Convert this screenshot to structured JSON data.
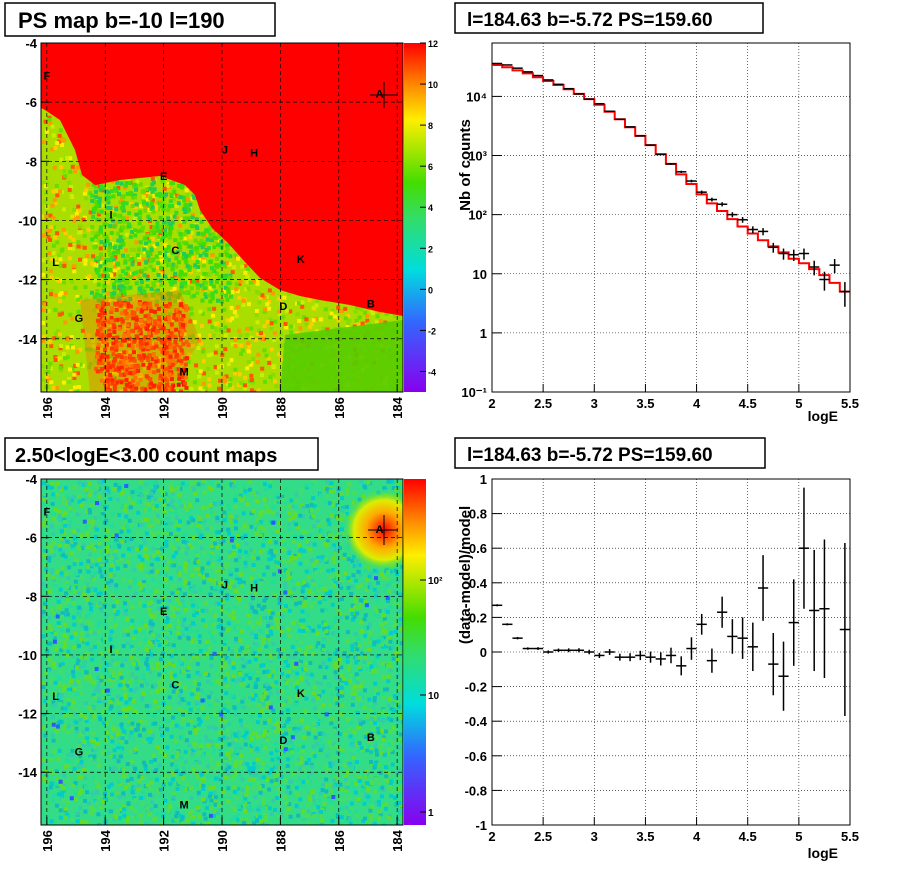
{
  "panels": {
    "tl_title": "PS map b=-10 l=190",
    "tr_title": "l=184.63 b=-5.72 PS=159.60",
    "bl_title": "2.50<logE<3.00 count maps",
    "br_title": "l=184.63 b=-5.72 PS=159.60"
  },
  "colors": {
    "red": "#ff0000",
    "green": "#33dd00",
    "grid": "#000000",
    "model_line": "#ff0000"
  },
  "maps": {
    "y_ticks": [
      "-4",
      "-6",
      "-8",
      "-10",
      "-12",
      "-14"
    ],
    "x_ticks": [
      "196",
      "194",
      "192",
      "190",
      "188",
      "186",
      "184"
    ],
    "sources": [
      "A",
      "B",
      "C",
      "D",
      "E",
      "F",
      "G",
      "H",
      "I",
      "J",
      "K",
      "L",
      "M"
    ],
    "tl_colorbar_ticks": [
      "12",
      "10",
      "8",
      "6",
      "4",
      "2",
      "0",
      "-2",
      "-4"
    ],
    "bl_colorbar_ticks": [
      "10²",
      "10",
      "1"
    ]
  },
  "chart_data": [
    {
      "type": "heatmap",
      "title": "PS map b=-10 l=190",
      "xlabel": "",
      "ylabel": "",
      "xlim": [
        196.2,
        183.8
      ],
      "ylim": [
        -15.8,
        -4
      ],
      "zlim": [
        -5,
        12
      ],
      "sources": [
        {
          "name": "A",
          "l": 184.6,
          "b": -5.7
        },
        {
          "name": "B",
          "l": 184.9,
          "b": -12.8
        },
        {
          "name": "C",
          "l": 191.6,
          "b": -11.0
        },
        {
          "name": "D",
          "l": 187.9,
          "b": -12.9
        },
        {
          "name": "E",
          "l": 192.0,
          "b": -8.5
        },
        {
          "name": "F",
          "l": 196.0,
          "b": -5.1
        },
        {
          "name": "G",
          "l": 194.9,
          "b": -13.3
        },
        {
          "name": "H",
          "l": 188.9,
          "b": -7.7
        },
        {
          "name": "I",
          "l": 193.8,
          "b": -9.8
        },
        {
          "name": "J",
          "l": 189.9,
          "b": -7.6
        },
        {
          "name": "K",
          "l": 187.3,
          "b": -11.3
        },
        {
          "name": "L",
          "l": 195.7,
          "b": -11.4
        },
        {
          "name": "M",
          "l": 191.3,
          "b": -15.1
        }
      ]
    },
    {
      "type": "line",
      "title": "l=184.63 b=-5.72 PS=159.60",
      "xlabel": "logE",
      "ylabel": "Nb of counts",
      "xlim": [
        2,
        5.5
      ],
      "ylim": [
        0.1,
        80000
      ],
      "yscale": "log",
      "x_ticks": [
        "2",
        "2.5",
        "3",
        "3.5",
        "4",
        "4.5",
        "5",
        "5.5"
      ],
      "y_ticks": [
        "10⁻¹",
        "1",
        "10",
        "10²",
        "10³",
        "10⁴"
      ],
      "series": [
        {
          "name": "data",
          "x": [
            2.05,
            2.15,
            2.25,
            2.35,
            2.45,
            2.55,
            2.65,
            2.75,
            2.85,
            2.95,
            3.05,
            3.15,
            3.25,
            3.35,
            3.45,
            3.55,
            3.65,
            3.75,
            3.85,
            3.95,
            4.05,
            4.15,
            4.25,
            4.35,
            4.45,
            4.55,
            4.65,
            4.75,
            4.85,
            4.95,
            5.05,
            5.15,
            5.25,
            5.35,
            5.45
          ],
          "values": [
            36000,
            34000,
            30000,
            26000,
            22500,
            19000,
            16000,
            13500,
            11000,
            9000,
            7500,
            5600,
            4100,
            3050,
            2150,
            1500,
            1050,
            720,
            530,
            370,
            240,
            180,
            150,
            100,
            82,
            56,
            52,
            28,
            22,
            21,
            22,
            13,
            8,
            14,
            5
          ]
        },
        {
          "name": "model",
          "x": [
            2.05,
            2.15,
            2.25,
            2.35,
            2.45,
            2.55,
            2.65,
            2.75,
            2.85,
            2.95,
            3.05,
            3.15,
            3.25,
            3.35,
            3.45,
            3.55,
            3.65,
            3.75,
            3.85,
            3.95,
            4.05,
            4.15,
            4.25,
            4.35,
            4.45,
            4.55,
            4.65,
            4.75,
            4.85,
            4.95,
            5.05,
            5.15,
            5.25,
            5.35,
            5.45
          ],
          "values": [
            34000,
            31000,
            27500,
            24500,
            21000,
            18200,
            15600,
            13200,
            11000,
            9000,
            7200,
            5500,
            4100,
            3000,
            2150,
            1500,
            1050,
            720,
            480,
            330,
            220,
            155,
            115,
            84,
            63,
            48,
            37,
            29,
            23,
            18,
            15,
            12,
            9.5,
            7,
            5
          ]
        }
      ]
    },
    {
      "type": "heatmap",
      "title": "2.50<logE<3.00 count maps",
      "xlabel": "",
      "ylabel": "",
      "xlim": [
        196.2,
        183.8
      ],
      "ylim": [
        -15.8,
        -4
      ],
      "zscale": "log"
    },
    {
      "type": "scatter",
      "title": "l=184.63 b=-5.72 PS=159.60",
      "xlabel": "logE",
      "ylabel": "(data-model)/model",
      "xlim": [
        2,
        5.5
      ],
      "ylim": [
        -1,
        1
      ],
      "x_ticks": [
        "2",
        "2.5",
        "3",
        "3.5",
        "4",
        "4.5",
        "5",
        "5.5"
      ],
      "y_ticks": [
        "1",
        "0.8",
        "0.6",
        "0.4",
        "0.2",
        "0",
        "-0.2",
        "-0.4",
        "-0.6",
        "-0.8",
        "-1"
      ],
      "x": [
        2.05,
        2.15,
        2.25,
        2.35,
        2.45,
        2.55,
        2.65,
        2.75,
        2.85,
        2.95,
        3.05,
        3.15,
        3.25,
        3.35,
        3.45,
        3.55,
        3.65,
        3.75,
        3.85,
        3.95,
        4.05,
        4.15,
        4.25,
        4.35,
        4.45,
        4.55,
        4.65,
        4.75,
        4.85,
        4.95,
        5.05,
        5.15,
        5.25,
        5.45
      ],
      "values": [
        0.27,
        0.16,
        0.08,
        0.02,
        0.02,
        0.0,
        0.01,
        0.01,
        0.01,
        0.0,
        -0.02,
        0.0,
        -0.03,
        -0.03,
        -0.02,
        -0.03,
        -0.04,
        -0.02,
        -0.08,
        0.02,
        0.16,
        -0.05,
        0.23,
        0.09,
        0.08,
        0.03,
        0.37,
        -0.07,
        -0.14,
        0.17,
        0.6,
        0.24,
        0.25,
        0.13
      ],
      "errors": [
        0.006,
        0.006,
        0.007,
        0.007,
        0.008,
        0.009,
        0.01,
        0.011,
        0.012,
        0.013,
        0.015,
        0.017,
        0.02,
        0.023,
        0.027,
        0.032,
        0.038,
        0.045,
        0.055,
        0.065,
        0.06,
        0.07,
        0.09,
        0.1,
        0.12,
        0.14,
        0.19,
        0.18,
        0.2,
        0.25,
        0.35,
        0.35,
        0.4,
        0.5
      ]
    }
  ]
}
